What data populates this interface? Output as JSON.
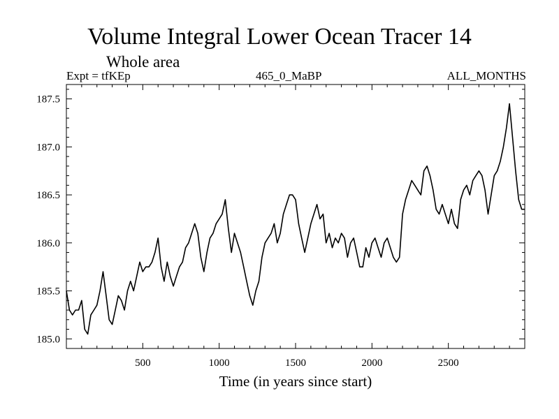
{
  "chart_data": {
    "type": "line",
    "title": "Volume Integral Lower Ocean Tracer 14",
    "subtitle": "Whole area",
    "header_left": "Expt = tfKEp",
    "header_center": "465_0_MaBP",
    "header_right": "ALL_MONTHS",
    "xlabel": "Time (in years since start)",
    "ylabel": "",
    "xlim": [
      0,
      3000
    ],
    "ylim": [
      184.9,
      187.65
    ],
    "xticks": [
      500,
      1000,
      1500,
      2000,
      2500
    ],
    "yticks": [
      185.0,
      185.5,
      186.0,
      186.5,
      187.0,
      187.5
    ],
    "grid": false,
    "line_color": "#000000",
    "series": [
      {
        "x": [
          0,
          20,
          40,
          60,
          80,
          100,
          120,
          140,
          160,
          180,
          200,
          220,
          240,
          260,
          280,
          300,
          320,
          340,
          360,
          380,
          400,
          420,
          440,
          460,
          480,
          500,
          520,
          540,
          560,
          580,
          600,
          620,
          640,
          660,
          680,
          700,
          720,
          740,
          760,
          780,
          800,
          820,
          840,
          860,
          880,
          900,
          920,
          940,
          960,
          980,
          1000,
          1020,
          1040,
          1060,
          1080,
          1100,
          1120,
          1140,
          1160,
          1180,
          1200,
          1220,
          1240,
          1260,
          1280,
          1300,
          1320,
          1340,
          1360,
          1380,
          1400,
          1420,
          1440,
          1460,
          1480,
          1500,
          1520,
          1540,
          1560,
          1580,
          1600,
          1620,
          1640,
          1660,
          1680,
          1700,
          1720,
          1740,
          1760,
          1780,
          1800,
          1820,
          1840,
          1860,
          1880,
          1900,
          1920,
          1940,
          1960,
          1980,
          2000,
          2020,
          2040,
          2060,
          2080,
          2100,
          2120,
          2140,
          2160,
          2180,
          2200,
          2220,
          2240,
          2260,
          2280,
          2300,
          2320,
          2340,
          2360,
          2380,
          2400,
          2420,
          2440,
          2460,
          2480,
          2500,
          2520,
          2540,
          2560,
          2580,
          2600,
          2620,
          2640,
          2660,
          2680,
          2700,
          2720,
          2740,
          2760,
          2780,
          2800,
          2820,
          2840,
          2860,
          2880,
          2900,
          2920,
          2940,
          2960,
          2980,
          3000
        ],
        "values": [
          185.5,
          185.3,
          185.25,
          185.3,
          185.3,
          185.4,
          185.1,
          185.05,
          185.25,
          185.3,
          185.35,
          185.5,
          185.7,
          185.45,
          185.2,
          185.15,
          185.3,
          185.45,
          185.4,
          185.3,
          185.5,
          185.6,
          185.5,
          185.65,
          185.8,
          185.7,
          185.75,
          185.75,
          185.8,
          185.9,
          186.05,
          185.75,
          185.6,
          185.8,
          185.65,
          185.55,
          185.65,
          185.75,
          185.8,
          185.95,
          186.0,
          186.1,
          186.2,
          186.1,
          185.85,
          185.7,
          185.9,
          186.05,
          186.1,
          186.2,
          186.25,
          186.3,
          186.45,
          186.15,
          185.9,
          186.1,
          186.0,
          185.9,
          185.75,
          185.6,
          185.45,
          185.35,
          185.5,
          185.6,
          185.85,
          186.0,
          186.05,
          186.1,
          186.2,
          186.0,
          186.1,
          186.3,
          186.4,
          186.5,
          186.5,
          186.45,
          186.2,
          186.05,
          185.9,
          186.05,
          186.2,
          186.3,
          186.4,
          186.25,
          186.3,
          186.0,
          186.1,
          185.95,
          186.05,
          186.0,
          186.1,
          186.05,
          185.85,
          186.0,
          186.05,
          185.9,
          185.75,
          185.75,
          185.95,
          185.85,
          186.0,
          186.05,
          185.95,
          185.85,
          186.0,
          186.05,
          185.95,
          185.85,
          185.8,
          185.85,
          186.3,
          186.45,
          186.55,
          186.65,
          186.6,
          186.55,
          186.5,
          186.75,
          186.8,
          186.7,
          186.55,
          186.35,
          186.3,
          186.4,
          186.3,
          186.2,
          186.35,
          186.2,
          186.15,
          186.45,
          186.55,
          186.6,
          186.5,
          186.65,
          186.7,
          186.75,
          186.7,
          186.55,
          186.3,
          186.5,
          186.7,
          186.75,
          186.85,
          187.0,
          187.2,
          187.45,
          187.1,
          186.75,
          186.45,
          186.35,
          186.35
        ]
      }
    ]
  }
}
